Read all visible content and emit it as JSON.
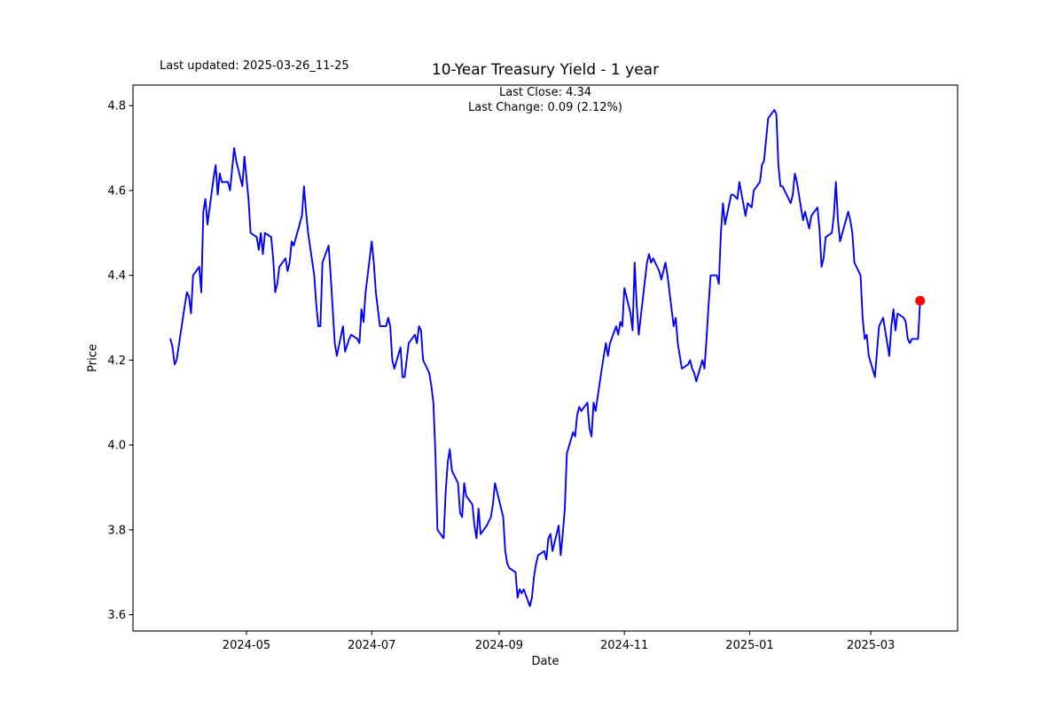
{
  "header": {
    "last_updated": "Last updated: 2025-03-26_11-25",
    "title": "10-Year Treasury Yield - 1 year",
    "subtitle_line1": "Last Close: 4.34",
    "subtitle_line2": "Last Change: 0.09 (2.12%)"
  },
  "chart_data": {
    "type": "line",
    "title": "10-Year Treasury Yield - 1 year",
    "xlabel": "Date",
    "ylabel": "Price",
    "grid": false,
    "legend": null,
    "line_color": "#0000ff",
    "last_point_color": "#ff0000",
    "last_close": 4.34,
    "last_change": "0.09 (2.12%)",
    "y_ticks": [
      {
        "value": 3.6,
        "label": "3.6"
      },
      {
        "value": 3.8,
        "label": "3.8"
      },
      {
        "value": 4.0,
        "label": "4.0"
      },
      {
        "value": 4.2,
        "label": "4.2"
      },
      {
        "value": 4.4,
        "label": "4.4"
      },
      {
        "value": 4.6,
        "label": "4.6"
      },
      {
        "value": 4.8,
        "label": "4.8"
      }
    ],
    "x_ticks": [
      {
        "date": "2024-05-01",
        "label": "2024-05"
      },
      {
        "date": "2024-07-01",
        "label": "2024-07"
      },
      {
        "date": "2024-09-01",
        "label": "2024-09"
      },
      {
        "date": "2024-11-01",
        "label": "2024-11"
      },
      {
        "date": "2025-01-01",
        "label": "2025-01"
      },
      {
        "date": "2025-03-01",
        "label": "2025-03"
      }
    ],
    "series": [
      {
        "name": "10-Year Treasury Yield",
        "points": [
          [
            "2024-03-25",
            4.25
          ],
          [
            "2024-03-26",
            4.23
          ],
          [
            "2024-03-27",
            4.19
          ],
          [
            "2024-03-28",
            4.2
          ],
          [
            "2024-04-01",
            4.33
          ],
          [
            "2024-04-02",
            4.36
          ],
          [
            "2024-04-03",
            4.35
          ],
          [
            "2024-04-04",
            4.31
          ],
          [
            "2024-04-05",
            4.4
          ],
          [
            "2024-04-08",
            4.42
          ],
          [
            "2024-04-09",
            4.36
          ],
          [
            "2024-04-10",
            4.55
          ],
          [
            "2024-04-11",
            4.58
          ],
          [
            "2024-04-12",
            4.52
          ],
          [
            "2024-04-15",
            4.63
          ],
          [
            "2024-04-16",
            4.66
          ],
          [
            "2024-04-17",
            4.59
          ],
          [
            "2024-04-18",
            4.64
          ],
          [
            "2024-04-19",
            4.62
          ],
          [
            "2024-04-22",
            4.62
          ],
          [
            "2024-04-23",
            4.6
          ],
          [
            "2024-04-24",
            4.65
          ],
          [
            "2024-04-25",
            4.7
          ],
          [
            "2024-04-26",
            4.67
          ],
          [
            "2024-04-29",
            4.61
          ],
          [
            "2024-04-30",
            4.68
          ],
          [
            "2024-05-01",
            4.63
          ],
          [
            "2024-05-02",
            4.58
          ],
          [
            "2024-05-03",
            4.5
          ],
          [
            "2024-05-06",
            4.49
          ],
          [
            "2024-05-07",
            4.46
          ],
          [
            "2024-05-08",
            4.5
          ],
          [
            "2024-05-09",
            4.45
          ],
          [
            "2024-05-10",
            4.5
          ],
          [
            "2024-05-13",
            4.49
          ],
          [
            "2024-05-14",
            4.44
          ],
          [
            "2024-05-15",
            4.36
          ],
          [
            "2024-05-16",
            4.38
          ],
          [
            "2024-05-17",
            4.42
          ],
          [
            "2024-05-20",
            4.44
          ],
          [
            "2024-05-21",
            4.41
          ],
          [
            "2024-05-22",
            4.43
          ],
          [
            "2024-05-23",
            4.48
          ],
          [
            "2024-05-24",
            4.47
          ],
          [
            "2024-05-28",
            4.54
          ],
          [
            "2024-05-29",
            4.61
          ],
          [
            "2024-05-30",
            4.55
          ],
          [
            "2024-05-31",
            4.5
          ],
          [
            "2024-06-03",
            4.4
          ],
          [
            "2024-06-04",
            4.33
          ],
          [
            "2024-06-05",
            4.28
          ],
          [
            "2024-06-06",
            4.28
          ],
          [
            "2024-06-07",
            4.43
          ],
          [
            "2024-06-10",
            4.47
          ],
          [
            "2024-06-11",
            4.4
          ],
          [
            "2024-06-12",
            4.32
          ],
          [
            "2024-06-13",
            4.24
          ],
          [
            "2024-06-14",
            4.21
          ],
          [
            "2024-06-17",
            4.28
          ],
          [
            "2024-06-18",
            4.22
          ],
          [
            "2024-06-20",
            4.25
          ],
          [
            "2024-06-21",
            4.26
          ],
          [
            "2024-06-24",
            4.25
          ],
          [
            "2024-06-25",
            4.24
          ],
          [
            "2024-06-26",
            4.32
          ],
          [
            "2024-06-27",
            4.29
          ],
          [
            "2024-06-28",
            4.36
          ],
          [
            "2024-07-01",
            4.48
          ],
          [
            "2024-07-02",
            4.43
          ],
          [
            "2024-07-03",
            4.36
          ],
          [
            "2024-07-05",
            4.28
          ],
          [
            "2024-07-08",
            4.28
          ],
          [
            "2024-07-09",
            4.3
          ],
          [
            "2024-07-10",
            4.28
          ],
          [
            "2024-07-11",
            4.2
          ],
          [
            "2024-07-12",
            4.18
          ],
          [
            "2024-07-15",
            4.23
          ],
          [
            "2024-07-16",
            4.16
          ],
          [
            "2024-07-17",
            4.16
          ],
          [
            "2024-07-18",
            4.2
          ],
          [
            "2024-07-19",
            4.24
          ],
          [
            "2024-07-22",
            4.26
          ],
          [
            "2024-07-23",
            4.24
          ],
          [
            "2024-07-24",
            4.28
          ],
          [
            "2024-07-25",
            4.27
          ],
          [
            "2024-07-26",
            4.2
          ],
          [
            "2024-07-29",
            4.17
          ],
          [
            "2024-07-30",
            4.14
          ],
          [
            "2024-07-31",
            4.1
          ],
          [
            "2024-08-01",
            3.98
          ],
          [
            "2024-08-02",
            3.8
          ],
          [
            "2024-08-05",
            3.78
          ],
          [
            "2024-08-06",
            3.89
          ],
          [
            "2024-08-07",
            3.96
          ],
          [
            "2024-08-08",
            3.99
          ],
          [
            "2024-08-09",
            3.94
          ],
          [
            "2024-08-12",
            3.91
          ],
          [
            "2024-08-13",
            3.84
          ],
          [
            "2024-08-14",
            3.83
          ],
          [
            "2024-08-15",
            3.91
          ],
          [
            "2024-08-16",
            3.88
          ],
          [
            "2024-08-19",
            3.86
          ],
          [
            "2024-08-20",
            3.81
          ],
          [
            "2024-08-21",
            3.78
          ],
          [
            "2024-08-22",
            3.85
          ],
          [
            "2024-08-23",
            3.79
          ],
          [
            "2024-08-26",
            3.81
          ],
          [
            "2024-08-27",
            3.82
          ],
          [
            "2024-08-28",
            3.83
          ],
          [
            "2024-08-29",
            3.86
          ],
          [
            "2024-08-30",
            3.91
          ],
          [
            "2024-09-03",
            3.83
          ],
          [
            "2024-09-04",
            3.75
          ],
          [
            "2024-09-05",
            3.72
          ],
          [
            "2024-09-06",
            3.71
          ],
          [
            "2024-09-09",
            3.7
          ],
          [
            "2024-09-10",
            3.64
          ],
          [
            "2024-09-11",
            3.66
          ],
          [
            "2024-09-12",
            3.65
          ],
          [
            "2024-09-13",
            3.66
          ],
          [
            "2024-09-16",
            3.62
          ],
          [
            "2024-09-17",
            3.64
          ],
          [
            "2024-09-18",
            3.69
          ],
          [
            "2024-09-19",
            3.72
          ],
          [
            "2024-09-20",
            3.74
          ],
          [
            "2024-09-23",
            3.75
          ],
          [
            "2024-09-24",
            3.73
          ],
          [
            "2024-09-25",
            3.78
          ],
          [
            "2024-09-26",
            3.79
          ],
          [
            "2024-09-27",
            3.75
          ],
          [
            "2024-09-30",
            3.81
          ],
          [
            "2024-10-01",
            3.74
          ],
          [
            "2024-10-02",
            3.79
          ],
          [
            "2024-10-03",
            3.85
          ],
          [
            "2024-10-04",
            3.98
          ],
          [
            "2024-10-07",
            4.03
          ],
          [
            "2024-10-08",
            4.02
          ],
          [
            "2024-10-09",
            4.07
          ],
          [
            "2024-10-10",
            4.09
          ],
          [
            "2024-10-11",
            4.08
          ],
          [
            "2024-10-14",
            4.1
          ],
          [
            "2024-10-15",
            4.04
          ],
          [
            "2024-10-16",
            4.02
          ],
          [
            "2024-10-17",
            4.1
          ],
          [
            "2024-10-18",
            4.08
          ],
          [
            "2024-10-21",
            4.18
          ],
          [
            "2024-10-22",
            4.21
          ],
          [
            "2024-10-23",
            4.24
          ],
          [
            "2024-10-24",
            4.21
          ],
          [
            "2024-10-25",
            4.24
          ],
          [
            "2024-10-28",
            4.28
          ],
          [
            "2024-10-29",
            4.26
          ],
          [
            "2024-10-30",
            4.29
          ],
          [
            "2024-10-31",
            4.28
          ],
          [
            "2024-11-01",
            4.37
          ],
          [
            "2024-11-04",
            4.31
          ],
          [
            "2024-11-05",
            4.27
          ],
          [
            "2024-11-06",
            4.43
          ],
          [
            "2024-11-07",
            4.33
          ],
          [
            "2024-11-08",
            4.26
          ],
          [
            "2024-11-12",
            4.43
          ],
          [
            "2024-11-13",
            4.45
          ],
          [
            "2024-11-14",
            4.43
          ],
          [
            "2024-11-15",
            4.44
          ],
          [
            "2024-11-18",
            4.41
          ],
          [
            "2024-11-19",
            4.39
          ],
          [
            "2024-11-20",
            4.41
          ],
          [
            "2024-11-21",
            4.43
          ],
          [
            "2024-11-22",
            4.4
          ],
          [
            "2024-11-25",
            4.28
          ],
          [
            "2024-11-26",
            4.3
          ],
          [
            "2024-11-27",
            4.24
          ],
          [
            "2024-11-29",
            4.18
          ],
          [
            "2024-12-02",
            4.19
          ],
          [
            "2024-12-03",
            4.2
          ],
          [
            "2024-12-04",
            4.18
          ],
          [
            "2024-12-05",
            4.17
          ],
          [
            "2024-12-06",
            4.15
          ],
          [
            "2024-12-09",
            4.2
          ],
          [
            "2024-12-10",
            4.18
          ],
          [
            "2024-12-11",
            4.25
          ],
          [
            "2024-12-12",
            4.33
          ],
          [
            "2024-12-13",
            4.4
          ],
          [
            "2024-12-16",
            4.4
          ],
          [
            "2024-12-17",
            4.38
          ],
          [
            "2024-12-18",
            4.5
          ],
          [
            "2024-12-19",
            4.57
          ],
          [
            "2024-12-20",
            4.52
          ],
          [
            "2024-12-23",
            4.59
          ],
          [
            "2024-12-24",
            4.59
          ],
          [
            "2024-12-26",
            4.58
          ],
          [
            "2024-12-27",
            4.62
          ],
          [
            "2024-12-30",
            4.54
          ],
          [
            "2024-12-31",
            4.57
          ],
          [
            "2025-01-02",
            4.56
          ],
          [
            "2025-01-03",
            4.6
          ],
          [
            "2025-01-06",
            4.62
          ],
          [
            "2025-01-07",
            4.66
          ],
          [
            "2025-01-08",
            4.67
          ],
          [
            "2025-01-10",
            4.77
          ],
          [
            "2025-01-13",
            4.79
          ],
          [
            "2025-01-14",
            4.78
          ],
          [
            "2025-01-15",
            4.66
          ],
          [
            "2025-01-16",
            4.61
          ],
          [
            "2025-01-17",
            4.61
          ],
          [
            "2025-01-21",
            4.57
          ],
          [
            "2025-01-22",
            4.59
          ],
          [
            "2025-01-23",
            4.64
          ],
          [
            "2025-01-24",
            4.62
          ],
          [
            "2025-01-27",
            4.53
          ],
          [
            "2025-01-28",
            4.55
          ],
          [
            "2025-01-29",
            4.53
          ],
          [
            "2025-01-30",
            4.51
          ],
          [
            "2025-01-31",
            4.54
          ],
          [
            "2025-02-03",
            4.56
          ],
          [
            "2025-02-04",
            4.51
          ],
          [
            "2025-02-05",
            4.42
          ],
          [
            "2025-02-06",
            4.44
          ],
          [
            "2025-02-07",
            4.49
          ],
          [
            "2025-02-10",
            4.5
          ],
          [
            "2025-02-11",
            4.54
          ],
          [
            "2025-02-12",
            4.62
          ],
          [
            "2025-02-13",
            4.53
          ],
          [
            "2025-02-14",
            4.48
          ],
          [
            "2025-02-18",
            4.55
          ],
          [
            "2025-02-19",
            4.53
          ],
          [
            "2025-02-20",
            4.5
          ],
          [
            "2025-02-21",
            4.43
          ],
          [
            "2025-02-24",
            4.4
          ],
          [
            "2025-02-25",
            4.3
          ],
          [
            "2025-02-26",
            4.25
          ],
          [
            "2025-02-27",
            4.26
          ],
          [
            "2025-02-28",
            4.21
          ],
          [
            "2025-03-03",
            4.16
          ],
          [
            "2025-03-04",
            4.22
          ],
          [
            "2025-03-05",
            4.28
          ],
          [
            "2025-03-06",
            4.29
          ],
          [
            "2025-03-07",
            4.3
          ],
          [
            "2025-03-10",
            4.21
          ],
          [
            "2025-03-11",
            4.28
          ],
          [
            "2025-03-12",
            4.32
          ],
          [
            "2025-03-13",
            4.27
          ],
          [
            "2025-03-14",
            4.31
          ],
          [
            "2025-03-17",
            4.3
          ],
          [
            "2025-03-18",
            4.29
          ],
          [
            "2025-03-19",
            4.25
          ],
          [
            "2025-03-20",
            4.24
          ],
          [
            "2025-03-21",
            4.25
          ],
          [
            "2025-03-24",
            4.25
          ],
          [
            "2025-03-25",
            4.34
          ]
        ]
      }
    ]
  }
}
